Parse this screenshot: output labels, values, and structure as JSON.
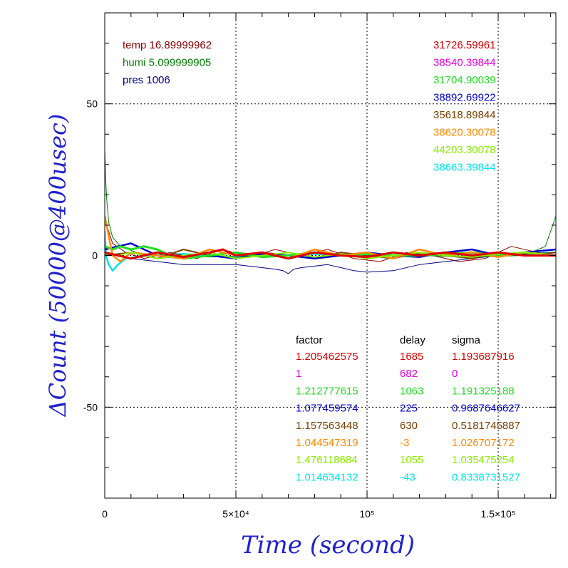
{
  "chart_data": {
    "type": "line",
    "xlabel": "Time (second)",
    "ylabel": "ΔCount (50000@400usec)",
    "xlim": [
      0,
      172000
    ],
    "ylim": [
      -80,
      80
    ],
    "grid": true,
    "x_ticks": [
      {
        "value": 0,
        "label": "0"
      },
      {
        "value": 50000,
        "label": "5×10⁴"
      },
      {
        "value": 100000,
        "label": "10⁵"
      },
      {
        "value": 150000,
        "label": "1.5×10⁵"
      }
    ],
    "y_ticks": [
      {
        "value": -50,
        "label": "-50"
      },
      {
        "value": 0,
        "label": "0"
      },
      {
        "value": 50,
        "label": "50"
      }
    ],
    "environment": [
      {
        "text": "temp 16.89999962",
        "color": "#8b0000"
      },
      {
        "text": "humi 5.099999905",
        "color": "#008000"
      },
      {
        "text": "pres 1006",
        "color": "#000080"
      }
    ],
    "mean_counts": [
      {
        "text": "31726.59961",
        "color": "#d40000"
      },
      {
        "text": "38540.39844",
        "color": "#e000e0"
      },
      {
        "text": "31704.90039",
        "color": "#22dd22"
      },
      {
        "text": "38892.69922",
        "color": "#0000cc"
      },
      {
        "text": "35618.89844",
        "color": "#7a4000"
      },
      {
        "text": "38620.30078",
        "color": "#ff8800"
      },
      {
        "text": "44203.30078",
        "color": "#88ee00"
      },
      {
        "text": "38663.39844",
        "color": "#00e5e5"
      }
    ],
    "table_headers": [
      "factor",
      "delay",
      "sigma"
    ],
    "table_rows": [
      {
        "factor": "1.205462575",
        "delay": "1685",
        "sigma": "1.193687916",
        "color": "#d40000"
      },
      {
        "factor": "1",
        "delay": "682",
        "sigma": "0",
        "color": "#e000e0"
      },
      {
        "factor": "1.212777615",
        "delay": "1063",
        "sigma": "1.191325188",
        "color": "#22dd22"
      },
      {
        "factor": "1.077459574",
        "delay": "225",
        "sigma": "0.9687646627",
        "color": "#0000cc"
      },
      {
        "factor": "1.157563448",
        "delay": "630",
        "sigma": "0.5181745887",
        "color": "#7a4000"
      },
      {
        "factor": "1.044547319",
        "delay": "-3",
        "sigma": "1.026707172",
        "color": "#ff8800"
      },
      {
        "factor": "1.476118684",
        "delay": "1055",
        "sigma": "1.035475254",
        "color": "#88ee00"
      },
      {
        "factor": "1.014634132",
        "delay": "-43",
        "sigma": "0.8338731527",
        "color": "#00e5e5"
      }
    ],
    "series": [
      {
        "color": "#00e5e5",
        "width": 2.5,
        "x": [
          0,
          500,
          1500,
          3000,
          5000,
          8000,
          15000,
          30000,
          50000,
          80000,
          100000,
          130000,
          150000,
          172000
        ],
        "y": [
          8,
          0,
          -3,
          -5,
          -3,
          -1,
          0,
          0.5,
          -0.5,
          0.5,
          0,
          0.5,
          0,
          1
        ]
      },
      {
        "color": "#000080",
        "width": 1,
        "x": [
          0,
          5000,
          10000,
          20000,
          25000,
          30000,
          40000,
          50000,
          55000,
          60000,
          65000,
          68000,
          70000,
          72000,
          75000,
          80000,
          85000,
          90000,
          95000,
          100000,
          110000,
          120000,
          130000,
          140000,
          150000,
          160000,
          172000
        ],
        "y": [
          1,
          0,
          -1,
          -2,
          -2.5,
          -3,
          -3,
          -3,
          -3.5,
          -4,
          -4.5,
          -5,
          -6,
          -4.5,
          -4,
          -3.5,
          -3,
          -4,
          -5,
          -5.5,
          -5,
          -3,
          -2,
          -1,
          0,
          0.5,
          1
        ]
      },
      {
        "color": "#8b0000",
        "width": 1,
        "x": [
          0,
          3000,
          8000,
          15000,
          25000,
          35000,
          45000,
          55000,
          65000,
          75000,
          85000,
          95000,
          105000,
          115000,
          125000,
          135000,
          145000,
          155000,
          165000,
          172000
        ],
        "y": [
          12,
          4,
          1,
          -1,
          1,
          -1,
          2,
          -0.5,
          2,
          0,
          2,
          -1,
          -2,
          1,
          0,
          -2,
          -1,
          3,
          1,
          0
        ]
      },
      {
        "color": "#008000",
        "width": 1,
        "x": [
          0,
          300,
          800,
          1500,
          3000,
          6000,
          12000,
          20000,
          40000,
          60000,
          80000,
          100000,
          120000,
          140000,
          160000,
          168000,
          172000
        ],
        "y": [
          35,
          26,
          18,
          11,
          6,
          3,
          1,
          0,
          -0.5,
          0,
          -0.5,
          0.5,
          0,
          -0.5,
          0,
          3,
          13
        ]
      },
      {
        "color": "#7a4000",
        "width": 2,
        "x": [
          0,
          10000,
          20000,
          30000,
          40000,
          50000,
          60000,
          70000,
          80000,
          90000,
          100000,
          110000,
          120000,
          130000,
          140000,
          150000,
          160000,
          172000
        ],
        "y": [
          0,
          1,
          -1,
          2,
          0,
          -1,
          1,
          0,
          -1,
          1,
          0,
          -1,
          1,
          0,
          -1,
          1,
          0,
          1
        ]
      },
      {
        "color": "#0000cc",
        "width": 2.5,
        "x": [
          0,
          5000,
          10000,
          15000,
          20000,
          30000,
          40000,
          50000,
          60000,
          70000,
          80000,
          90000,
          100000,
          110000,
          120000,
          130000,
          140000,
          150000,
          160000,
          172000
        ],
        "y": [
          2,
          3,
          4,
          2,
          0,
          -1,
          0,
          -1,
          0.5,
          0,
          -1,
          0,
          1,
          0,
          -0.5,
          1,
          2,
          0,
          1,
          2
        ]
      },
      {
        "color": "#22dd22",
        "width": 3,
        "x": [
          0,
          3000,
          6000,
          10000,
          15000,
          20000,
          25000,
          30000,
          40000,
          50000,
          60000,
          70000,
          80000,
          90000,
          100000,
          110000,
          120000,
          130000,
          140000,
          150000,
          160000,
          172000
        ],
        "y": [
          3,
          2,
          3,
          2,
          3,
          2,
          0,
          -1,
          0,
          1,
          -0.5,
          0,
          1,
          0,
          0.5,
          0,
          0,
          0.5,
          1,
          0,
          1,
          0
        ]
      },
      {
        "color": "#ff8800",
        "width": 2.5,
        "x": [
          0,
          3000,
          6000,
          10000,
          20000,
          30000,
          40000,
          50000,
          60000,
          70000,
          80000,
          90000,
          100000,
          110000,
          120000,
          130000,
          140000,
          150000,
          160000,
          172000
        ],
        "y": [
          13,
          0,
          -2,
          1,
          0,
          -1,
          2,
          0,
          1,
          -1,
          2,
          0,
          1,
          -1,
          2,
          0,
          1,
          -0.5,
          1,
          0
        ]
      },
      {
        "color": "#88ee00",
        "width": 2,
        "x": [
          0,
          5000,
          10000,
          20000,
          30000,
          40000,
          50000,
          60000,
          70000,
          80000,
          90000,
          100000,
          110000,
          120000,
          130000,
          140000,
          150000,
          160000,
          172000
        ],
        "y": [
          1,
          0,
          1,
          -1,
          0,
          1,
          -1,
          0,
          1,
          -0.5,
          0.5,
          -1,
          0,
          1,
          0,
          -0.5,
          0.5,
          1,
          0
        ]
      },
      {
        "color": "#e00000",
        "width": 3,
        "x": [
          0,
          5000,
          10000,
          15000,
          20000,
          30000,
          40000,
          45000,
          50000,
          60000,
          70000,
          80000,
          90000,
          100000,
          110000,
          120000,
          130000,
          140000,
          150000,
          160000,
          172000
        ],
        "y": [
          1,
          0,
          -1,
          0,
          1,
          -0.5,
          1,
          2,
          0,
          1,
          -1,
          1,
          0,
          -0.5,
          1,
          0,
          1,
          0,
          1,
          0,
          0
        ]
      }
    ]
  }
}
